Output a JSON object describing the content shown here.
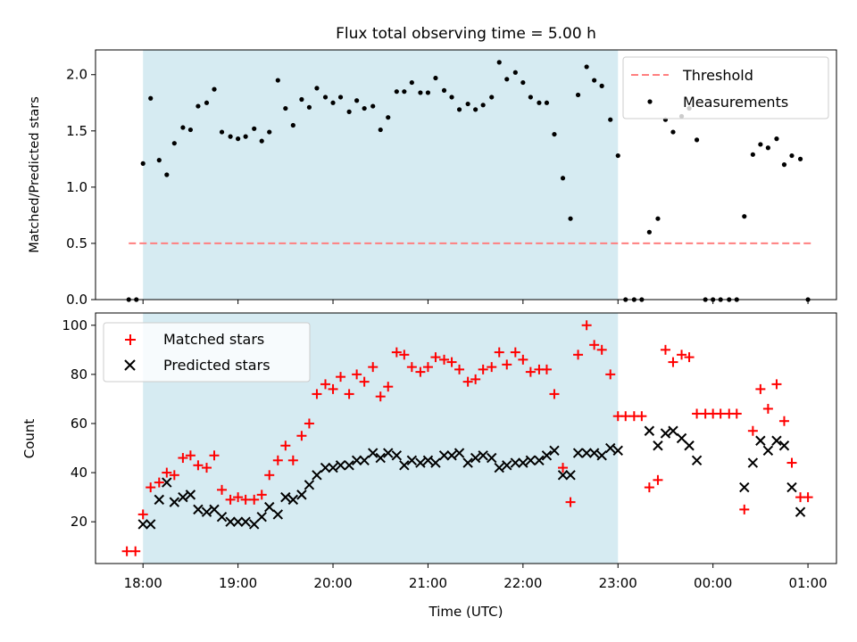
{
  "chart_data": [
    {
      "type": "scatter",
      "title": "Flux total observing time = 5.00 h",
      "xlabel": "",
      "ylabel": "Matched/Predicted stars",
      "ylim": [
        0,
        2.22
      ],
      "yticks": [
        "0.0",
        "0.5",
        "1.0",
        "1.5",
        "2.0"
      ],
      "xlim_hours": [
        17.5,
        25.3
      ],
      "shaded_region_hours": [
        18.0,
        23.0
      ],
      "shaded_color": "#add8e6",
      "threshold": {
        "label": "Threshold",
        "value": 0.5,
        "x_range_hours": [
          17.85,
          25.05
        ],
        "color": "#ff7f7f"
      },
      "legend": {
        "placement": "upper right",
        "entries": [
          "Threshold",
          "Measurements"
        ]
      },
      "series": [
        {
          "name": "Measurements",
          "color": "#000000",
          "x_hours": [
            17.85,
            17.93,
            18.0,
            18.08,
            18.17,
            18.25,
            18.33,
            18.42,
            18.5,
            18.58,
            18.67,
            18.75,
            18.83,
            18.92,
            19.0,
            19.08,
            19.17,
            19.25,
            19.33,
            19.42,
            19.5,
            19.58,
            19.67,
            19.75,
            19.83,
            19.92,
            20.0,
            20.08,
            20.17,
            20.25,
            20.33,
            20.42,
            20.5,
            20.58,
            20.67,
            20.75,
            20.83,
            20.92,
            21.0,
            21.08,
            21.17,
            21.25,
            21.33,
            21.42,
            21.5,
            21.58,
            21.67,
            21.75,
            21.83,
            21.92,
            22.0,
            22.08,
            22.17,
            22.25,
            22.33,
            22.42,
            22.5,
            22.58,
            22.67,
            22.75,
            22.83,
            22.92,
            23.0,
            23.08,
            23.17,
            23.25,
            23.33,
            23.42,
            23.5,
            23.58,
            23.67,
            23.75,
            23.83,
            23.92,
            24.0,
            24.08,
            24.17,
            24.25,
            24.33,
            24.42,
            24.5,
            24.58,
            24.67,
            24.75,
            24.83,
            24.92,
            25.0
          ],
          "y": [
            0.0,
            0.0,
            1.21,
            1.79,
            1.24,
            1.11,
            1.39,
            1.53,
            1.51,
            1.72,
            1.75,
            1.87,
            1.49,
            1.45,
            1.43,
            1.45,
            1.52,
            1.41,
            1.49,
            1.95,
            1.7,
            1.55,
            1.78,
            1.71,
            1.88,
            1.8,
            1.75,
            1.8,
            1.67,
            1.77,
            1.7,
            1.72,
            1.51,
            1.62,
            1.85,
            1.85,
            1.93,
            1.84,
            1.84,
            1.97,
            1.86,
            1.8,
            1.69,
            1.74,
            1.69,
            1.73,
            1.8,
            2.11,
            1.96,
            2.02,
            1.93,
            1.8,
            1.75,
            1.75,
            1.47,
            1.08,
            0.72,
            1.82,
            2.07,
            1.95,
            1.9,
            1.6,
            1.28,
            0.0,
            0.0,
            0.0,
            0.6,
            0.72,
            1.6,
            1.49,
            1.63,
            1.7,
            1.42,
            0.0,
            0.0,
            0.0,
            0.0,
            0.0,
            0.74,
            1.29,
            1.38,
            1.35,
            1.43,
            1.2,
            1.28,
            1.25,
            0.0
          ]
        }
      ]
    },
    {
      "type": "scatter",
      "title": "",
      "xlabel": "Time (UTC)",
      "ylabel": "Count",
      "ylim": [
        3,
        105
      ],
      "yticks": [
        "20",
        "40",
        "60",
        "80",
        "100"
      ],
      "xticks": [
        "18:00",
        "19:00",
        "20:00",
        "21:00",
        "22:00",
        "23:00",
        "00:00",
        "01:00"
      ],
      "xlim_hours": [
        17.5,
        25.3
      ],
      "shaded_region_hours": [
        18.0,
        23.0
      ],
      "legend": {
        "placement": "upper left",
        "entries": [
          "Matched stars",
          "Predicted stars"
        ]
      },
      "series": [
        {
          "name": "Matched stars",
          "marker": "+",
          "color": "#ff0000",
          "x_hours": [
            17.83,
            17.92,
            18.0,
            18.08,
            18.17,
            18.25,
            18.33,
            18.42,
            18.5,
            18.58,
            18.67,
            18.75,
            18.83,
            18.92,
            19.0,
            19.08,
            19.17,
            19.25,
            19.33,
            19.42,
            19.5,
            19.58,
            19.67,
            19.75,
            19.83,
            19.92,
            20.0,
            20.08,
            20.17,
            20.25,
            20.33,
            20.42,
            20.5,
            20.58,
            20.67,
            20.75,
            20.83,
            20.92,
            21.0,
            21.08,
            21.17,
            21.25,
            21.33,
            21.42,
            21.5,
            21.58,
            21.67,
            21.75,
            21.83,
            21.92,
            22.0,
            22.08,
            22.17,
            22.25,
            22.33,
            22.42,
            22.5,
            22.58,
            22.67,
            22.75,
            22.83,
            22.92,
            23.0,
            23.08,
            23.17,
            23.25,
            23.33,
            23.42,
            23.5,
            23.58,
            23.67,
            23.75,
            23.83,
            23.92,
            24.0,
            24.08,
            24.17,
            24.25,
            24.33,
            24.42,
            24.5,
            24.58,
            24.67,
            24.75,
            24.83,
            24.92,
            25.0
          ],
          "y": [
            8,
            8,
            23,
            34,
            36,
            40,
            39,
            46,
            47,
            43,
            42,
            47,
            33,
            29,
            30,
            29,
            29,
            31,
            39,
            45,
            51,
            45,
            55,
            60,
            72,
            76,
            74,
            79,
            72,
            80,
            77,
            83,
            71,
            75,
            89,
            88,
            83,
            81,
            83,
            87,
            86,
            85,
            82,
            77,
            78,
            82,
            83,
            89,
            84,
            89,
            86,
            81,
            82,
            82,
            72,
            42,
            28,
            88,
            100,
            92,
            90,
            80,
            63,
            63,
            63,
            63,
            34,
            37,
            90,
            85,
            88,
            87,
            64,
            64,
            64,
            64,
            64,
            64,
            25,
            57,
            74,
            66,
            76,
            61,
            44,
            30,
            30
          ]
        },
        {
          "name": "Predicted stars",
          "marker": "x",
          "color": "#000000",
          "x_hours": [
            18.0,
            18.08,
            18.17,
            18.25,
            18.33,
            18.42,
            18.5,
            18.58,
            18.67,
            18.75,
            18.83,
            18.92,
            19.0,
            19.08,
            19.17,
            19.25,
            19.33,
            19.42,
            19.5,
            19.58,
            19.67,
            19.75,
            19.83,
            19.92,
            20.0,
            20.08,
            20.17,
            20.25,
            20.33,
            20.42,
            20.5,
            20.58,
            20.67,
            20.75,
            20.83,
            20.92,
            21.0,
            21.08,
            21.17,
            21.25,
            21.33,
            21.42,
            21.5,
            21.58,
            21.67,
            21.75,
            21.83,
            21.92,
            22.0,
            22.08,
            22.17,
            22.25,
            22.33,
            22.42,
            22.5,
            22.58,
            22.67,
            22.75,
            22.83,
            22.92,
            23.0,
            23.33,
            23.42,
            23.5,
            23.58,
            23.67,
            23.75,
            23.83,
            24.33,
            24.42,
            24.5,
            24.58,
            24.67,
            24.75,
            24.83,
            24.92
          ],
          "y": [
            19,
            19,
            29,
            36,
            28,
            30,
            31,
            25,
            24,
            25,
            22,
            20,
            20,
            20,
            19,
            22,
            26,
            23,
            30,
            29,
            31,
            35,
            39,
            42,
            42,
            43,
            43,
            45,
            45,
            48,
            46,
            48,
            47,
            43,
            45,
            44,
            45,
            44,
            47,
            47,
            48,
            44,
            46,
            47,
            46,
            42,
            43,
            44,
            44,
            45,
            45,
            47,
            49,
            39,
            39,
            48,
            48,
            48,
            47,
            50,
            49,
            57,
            51,
            56,
            57,
            54,
            51,
            45,
            34,
            44,
            53,
            49,
            53,
            51,
            34,
            24
          ]
        }
      ]
    }
  ]
}
